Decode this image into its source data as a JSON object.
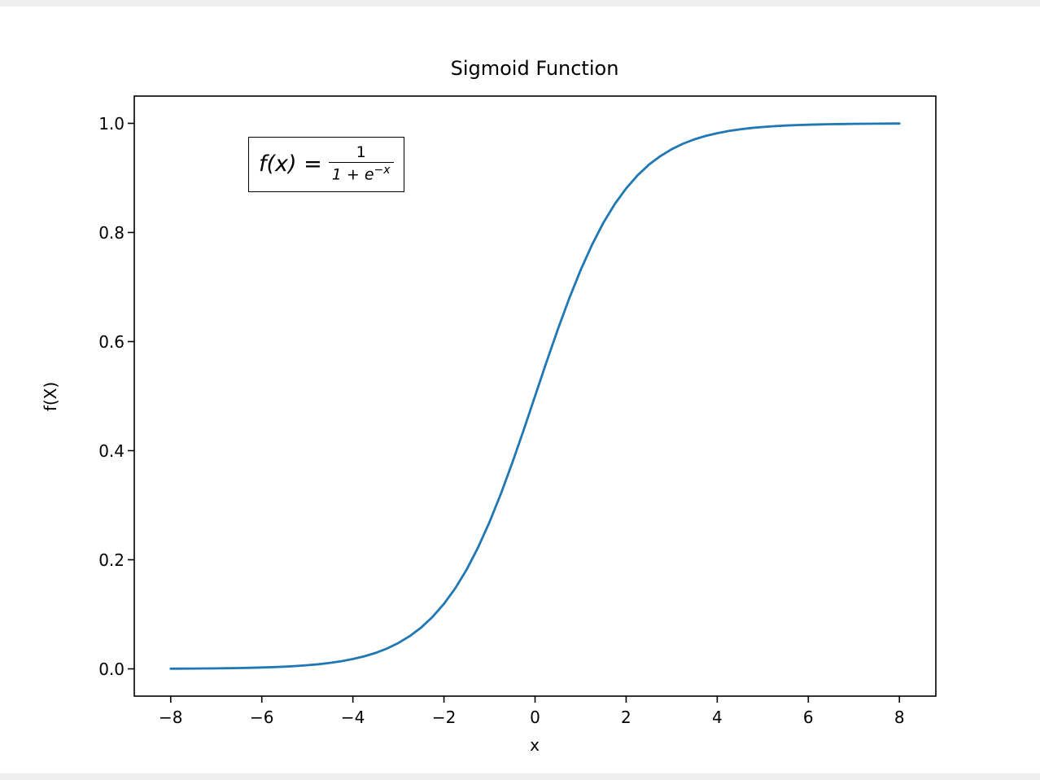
{
  "chart_data": {
    "type": "line",
    "title": "Sigmoid Function",
    "xlabel": "x",
    "ylabel": "f(X)",
    "xlim": [
      -8.8,
      8.8
    ],
    "ylim": [
      -0.05,
      1.05
    ],
    "grid": false,
    "legend": "none",
    "line_color": "#1f77b4",
    "xticks": [
      -8,
      -6,
      -4,
      -2,
      0,
      2,
      4,
      6,
      8
    ],
    "xtick_labels": [
      "−8",
      "−6",
      "−4",
      "−2",
      "0",
      "2",
      "4",
      "6",
      "8"
    ],
    "yticks": [
      0.0,
      0.2,
      0.4,
      0.6,
      0.8,
      1.0
    ],
    "ytick_labels": [
      "0.0",
      "0.2",
      "0.4",
      "0.6",
      "0.8",
      "1.0"
    ],
    "annotation": {
      "text": "f(x) = 1/(1+e^−x)",
      "lhs": "f(x) =",
      "numerator": "1",
      "denominator_base": "1 + e",
      "denominator_exponent": "−x"
    },
    "x": [
      -8,
      -7.75,
      -7.5,
      -7.25,
      -7,
      -6.75,
      -6.5,
      -6.25,
      -6,
      -5.75,
      -5.5,
      -5.25,
      -5,
      -4.75,
      -4.5,
      -4.25,
      -4,
      -3.75,
      -3.5,
      -3.25,
      -3,
      -2.75,
      -2.5,
      -2.25,
      -2,
      -1.75,
      -1.5,
      -1.25,
      -1,
      -0.75,
      -0.5,
      -0.25,
      0,
      0.25,
      0.5,
      0.75,
      1,
      1.25,
      1.5,
      1.75,
      2,
      2.25,
      2.5,
      2.75,
      3,
      3.25,
      3.5,
      3.75,
      4,
      4.25,
      4.5,
      4.75,
      5,
      5.25,
      5.5,
      5.75,
      6,
      6.25,
      6.5,
      6.75,
      7,
      7.25,
      7.5,
      7.75,
      8
    ],
    "y": [
      0.000335,
      0.000431,
      0.000553,
      0.00071,
      0.000911,
      0.00117,
      0.001503,
      0.001927,
      0.002473,
      0.003173,
      0.00407,
      0.00522,
      0.006693,
      0.008577,
      0.010987,
      0.014064,
      0.017986,
      0.022977,
      0.029312,
      0.037327,
      0.047426,
      0.060087,
      0.075858,
      0.095349,
      0.119203,
      0.148047,
      0.182426,
      0.2227,
      0.268941,
      0.320821,
      0.377541,
      0.437823,
      0.5,
      0.562177,
      0.622459,
      0.679179,
      0.731059,
      0.7773,
      0.817574,
      0.851953,
      0.880797,
      0.904651,
      0.924142,
      0.939913,
      0.952574,
      0.962673,
      0.970688,
      0.977022,
      0.982014,
      0.985936,
      0.989013,
      0.991422,
      0.993307,
      0.994779,
      0.99593,
      0.996827,
      0.997527,
      0.998073,
      0.998497,
      0.99883,
      0.999089,
      0.99929,
      0.999447,
      0.999569,
      0.999665
    ]
  }
}
